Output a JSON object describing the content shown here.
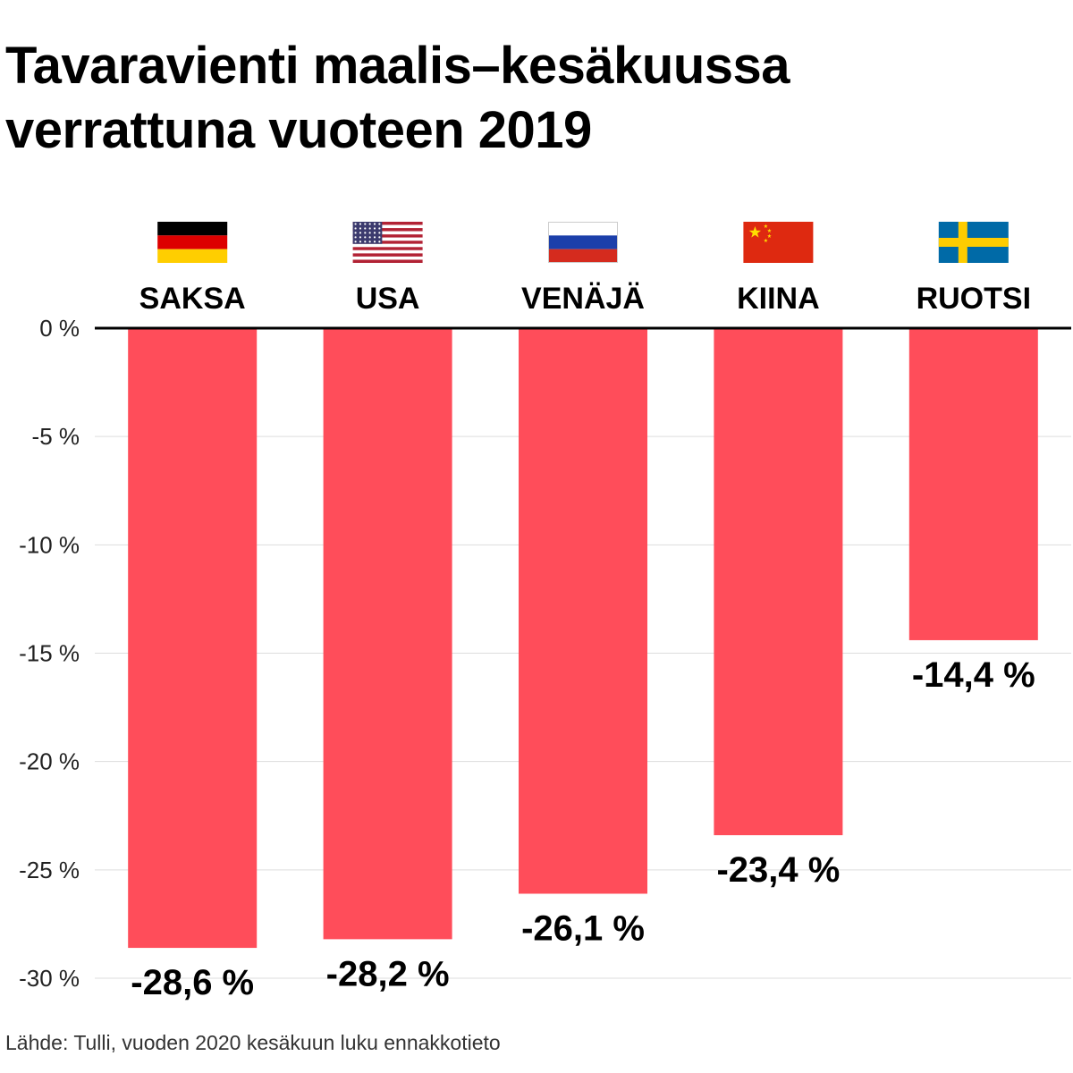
{
  "title": {
    "line1": "Tavaravienti maalis–kesäkuussa",
    "line2": "verrattuna vuoteen 2019"
  },
  "source": "Lähde: Tulli, vuoden 2020 kesäkuun luku ennakkotieto",
  "colors": {
    "bar": "#ff4d5a",
    "grid": "#dddddd",
    "axis": "#000000"
  },
  "chart_data": {
    "type": "bar",
    "categories": [
      "SAKSA",
      "USA",
      "VENÄJÄ",
      "KIINA",
      "RUOTSI"
    ],
    "flags": [
      "germany-flag-icon",
      "usa-flag-icon",
      "russia-flag-icon",
      "china-flag-icon",
      "sweden-flag-icon"
    ],
    "values": [
      -28.6,
      -28.2,
      -26.1,
      -23.4,
      -14.4
    ],
    "data_labels": [
      "-28,6 %",
      "-28,2 %",
      "-26,1 %",
      "-23,4 %",
      "-14,4 %"
    ],
    "yticks": [
      0,
      -5,
      -10,
      -15,
      -20,
      -25,
      -30
    ],
    "ytick_labels": [
      "0 %",
      "-5 %",
      "-10 %",
      "-15 %",
      "-20 %",
      "-25 %",
      "-30 %"
    ],
    "ylim": [
      -30,
      0
    ],
    "grid": true
  }
}
